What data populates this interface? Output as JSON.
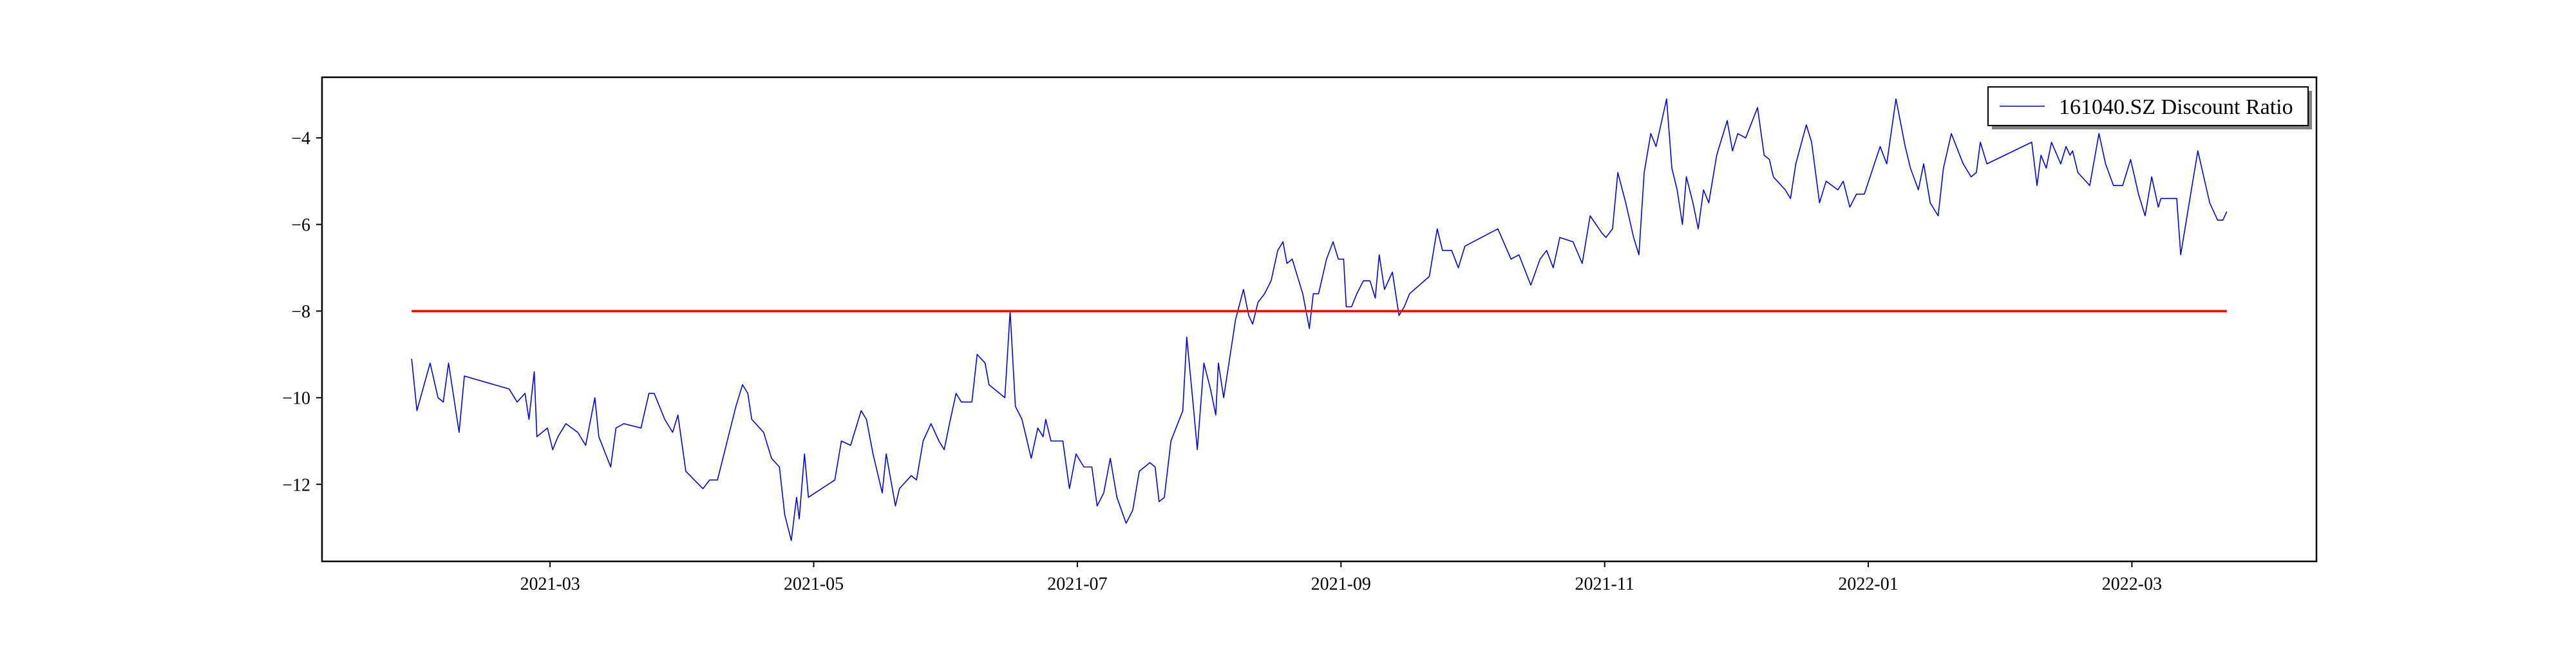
{
  "chart_data": {
    "type": "line",
    "xlim": [
      1.27,
      16.4
    ],
    "ylim": [
      -13.78,
      -2.6
    ],
    "xticks": [
      {
        "value": 3,
        "label": "2021-03"
      },
      {
        "value": 5,
        "label": "2021-05"
      },
      {
        "value": 7,
        "label": "2021-07"
      },
      {
        "value": 9,
        "label": "2021-09"
      },
      {
        "value": 11,
        "label": "2021-11"
      },
      {
        "value": 13,
        "label": "2022-01"
      },
      {
        "value": 15,
        "label": "2022-03"
      }
    ],
    "yticks": [
      {
        "value": -12,
        "label": "−12"
      },
      {
        "value": -10,
        "label": "−10"
      },
      {
        "value": -8,
        "label": "−8"
      },
      {
        "value": -6,
        "label": "−6"
      },
      {
        "value": -4,
        "label": "−4"
      }
    ],
    "grid": false,
    "legend": "upper right",
    "series": [
      {
        "name": "161040.SZ Discount Ratio",
        "color": "#0000ff",
        "x": [
          1.95,
          1.99,
          2.09,
          2.15,
          2.19,
          2.23,
          2.31,
          2.35,
          2.69,
          2.75,
          2.81,
          2.84,
          2.88,
          2.9,
          2.98,
          3.02,
          3.06,
          3.12,
          3.21,
          3.27,
          3.34,
          3.37,
          3.46,
          3.5,
          3.56,
          3.69,
          3.75,
          3.79,
          3.87,
          3.93,
          3.97,
          4.03,
          4.16,
          4.21,
          4.27,
          4.41,
          4.46,
          4.5,
          4.53,
          4.62,
          4.68,
          4.74,
          4.78,
          4.83,
          4.87,
          4.89,
          4.93,
          4.96,
          5.06,
          5.16,
          5.21,
          5.28,
          5.36,
          5.4,
          5.45,
          5.52,
          5.55,
          5.62,
          5.65,
          5.74,
          5.78,
          5.83,
          5.89,
          5.95,
          5.99,
          6.03,
          6.08,
          6.12,
          6.2,
          6.24,
          6.3,
          6.33,
          6.45,
          6.49,
          6.53,
          6.58,
          6.65,
          6.7,
          6.74,
          6.76,
          6.8,
          6.89,
          6.94,
          6.99,
          7.05,
          7.11,
          7.15,
          7.2,
          7.25,
          7.3,
          7.37,
          7.42,
          7.47,
          7.55,
          7.59,
          7.62,
          7.66,
          7.71,
          7.8,
          7.83,
          7.88,
          7.91,
          7.96,
          8.01,
          8.05,
          8.07,
          8.11,
          8.15,
          8.2,
          8.26,
          8.3,
          8.33,
          8.37,
          8.42,
          8.47,
          8.52,
          8.56,
          8.59,
          8.63,
          8.71,
          8.76,
          8.79,
          8.83,
          8.89,
          8.94,
          8.98,
          9.02,
          9.04,
          9.08,
          9.12,
          9.17,
          9.22,
          9.26,
          9.29,
          9.33,
          9.39,
          9.44,
          9.48,
          9.52,
          9.67,
          9.73,
          9.77,
          9.84,
          9.89,
          9.94,
          10.19,
          10.29,
          10.35,
          10.44,
          10.51,
          10.56,
          10.61,
          10.66,
          10.76,
          10.83,
          10.89,
          10.98,
          11.01,
          11.06,
          11.1,
          11.16,
          11.22,
          11.26,
          11.3,
          11.35,
          11.39,
          11.47,
          11.51,
          11.55,
          11.59,
          11.62,
          11.67,
          11.71,
          11.75,
          11.79,
          11.85,
          11.93,
          11.97,
          12.01,
          12.07,
          12.16,
          12.21,
          12.25,
          12.28,
          12.37,
          12.41,
          12.45,
          12.53,
          12.57,
          12.63,
          12.68,
          12.77,
          12.81,
          12.86,
          12.91,
          12.97,
          13.09,
          13.14,
          13.21,
          13.28,
          13.32,
          13.38,
          13.42,
          13.47,
          13.53,
          13.57,
          13.63,
          13.72,
          13.78,
          13.82,
          13.85,
          13.9,
          14.24,
          14.28,
          14.31,
          14.35,
          14.39,
          14.46,
          14.5,
          14.53,
          14.55,
          14.59,
          14.68,
          14.75,
          14.8,
          14.86,
          14.93,
          14.99,
          15.05,
          15.1,
          15.15,
          15.2,
          15.22,
          15.27,
          15.34,
          15.37,
          15.44,
          15.5,
          15.59,
          15.65,
          15.69,
          15.72
        ],
        "values": [
          -9.1,
          -10.3,
          -9.2,
          -10.0,
          -10.1,
          -9.2,
          -10.8,
          -9.5,
          -9.8,
          -10.1,
          -9.9,
          -10.5,
          -9.4,
          -10.9,
          -10.7,
          -11.2,
          -10.9,
          -10.6,
          -10.8,
          -11.1,
          -10.0,
          -10.9,
          -11.6,
          -10.7,
          -10.6,
          -10.7,
          -9.9,
          -9.9,
          -10.5,
          -10.8,
          -10.4,
          -11.7,
          -12.1,
          -11.9,
          -11.9,
          -10.2,
          -9.7,
          -9.9,
          -10.5,
          -10.8,
          -11.4,
          -11.6,
          -12.7,
          -13.3,
          -12.3,
          -12.8,
          -11.3,
          -12.3,
          -12.1,
          -11.9,
          -11.0,
          -11.1,
          -10.3,
          -10.5,
          -11.3,
          -12.2,
          -11.3,
          -12.5,
          -12.1,
          -11.8,
          -11.9,
          -11.0,
          -10.6,
          -11.0,
          -11.2,
          -10.6,
          -9.9,
          -10.1,
          -10.1,
          -9.0,
          -9.2,
          -9.7,
          -10.0,
          -8.0,
          -10.2,
          -10.5,
          -11.4,
          -10.7,
          -10.9,
          -10.5,
          -11.0,
          -11.0,
          -12.1,
          -11.3,
          -11.6,
          -11.6,
          -12.5,
          -12.2,
          -11.4,
          -12.3,
          -12.9,
          -12.6,
          -11.7,
          -11.5,
          -11.6,
          -12.4,
          -12.3,
          -11.0,
          -10.3,
          -8.6,
          -10.2,
          -11.2,
          -9.2,
          -9.8,
          -10.4,
          -9.2,
          -10.0,
          -9.2,
          -8.2,
          -7.5,
          -8.1,
          -8.3,
          -7.8,
          -7.6,
          -7.3,
          -6.6,
          -6.4,
          -6.9,
          -6.8,
          -7.6,
          -8.4,
          -7.6,
          -7.6,
          -6.8,
          -6.4,
          -6.8,
          -6.8,
          -7.9,
          -7.9,
          -7.6,
          -7.3,
          -7.3,
          -7.7,
          -6.7,
          -7.5,
          -7.1,
          -8.1,
          -7.9,
          -7.6,
          -7.2,
          -6.1,
          -6.6,
          -6.6,
          -7.0,
          -6.5,
          -6.1,
          -6.8,
          -6.7,
          -7.4,
          -6.8,
          -6.6,
          -7.0,
          -6.3,
          -6.4,
          -6.9,
          -5.8,
          -6.2,
          -6.3,
          -6.1,
          -4.8,
          -5.5,
          -6.3,
          -6.7,
          -4.8,
          -3.9,
          -4.2,
          -3.1,
          -4.7,
          -5.2,
          -6.0,
          -4.9,
          -5.5,
          -6.1,
          -5.2,
          -5.5,
          -4.4,
          -3.6,
          -4.3,
          -3.9,
          -4.0,
          -3.3,
          -4.4,
          -4.5,
          -4.9,
          -5.2,
          -5.4,
          -4.6,
          -3.7,
          -4.1,
          -5.5,
          -5.0,
          -5.2,
          -5.0,
          -5.6,
          -5.3,
          -5.3,
          -4.2,
          -4.6,
          -3.1,
          -4.2,
          -4.7,
          -5.2,
          -4.6,
          -5.5,
          -5.8,
          -4.7,
          -3.9,
          -4.6,
          -4.9,
          -4.8,
          -4.1,
          -4.6,
          -4.1,
          -5.1,
          -4.4,
          -4.7,
          -4.1,
          -4.6,
          -4.2,
          -4.4,
          -4.3,
          -4.8,
          -5.1,
          -3.9,
          -4.6,
          -5.1,
          -5.1,
          -4.5,
          -5.3,
          -5.8,
          -4.9,
          -5.6,
          -5.4,
          -5.4,
          -5.4,
          -6.7,
          -5.4,
          -4.3,
          -5.5,
          -5.9,
          -5.9,
          -5.7
        ]
      }
    ],
    "reference_line": {
      "y": -8,
      "x": [
        1.95,
        15.72
      ],
      "color": "#ff0000"
    }
  }
}
